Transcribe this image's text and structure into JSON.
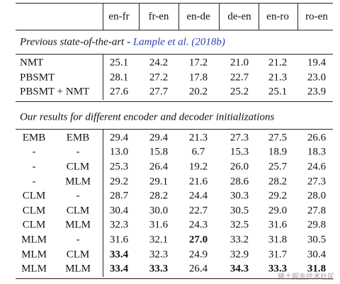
{
  "table": {
    "header": [
      "en-fr",
      "fr-en",
      "en-de",
      "de-en",
      "en-ro",
      "ro-en"
    ],
    "sections": [
      {
        "title": "Previous state-of-the-art - ",
        "citation": "Lample et al. (2018b)",
        "rows": [
          [
            "NMT",
            "25.1",
            "24.2",
            "17.2",
            "21.0",
            "21.2",
            "19.4"
          ],
          [
            "PBSMT",
            "28.1",
            "27.2",
            "17.8",
            "22.7",
            "21.3",
            "23.0"
          ],
          [
            "PBSMT + NMT",
            "27.6",
            "27.7",
            "20.2",
            "25.2",
            "25.1",
            "23.9"
          ]
        ]
      },
      {
        "title": "Our results for different encoder and decoder initializations",
        "rows": [
          [
            "EMB",
            "EMB",
            "29.4",
            "29.4",
            "21.3",
            "27.3",
            "27.5",
            "26.6"
          ],
          [
            "-",
            "-",
            "13.0",
            "15.8",
            "6.7",
            "15.3",
            "18.9",
            "18.3"
          ],
          [
            "-",
            "CLM",
            "25.3",
            "26.4",
            "19.2",
            "26.0",
            "25.7",
            "24.6"
          ],
          [
            "-",
            "MLM",
            "29.2",
            "29.1",
            "21.6",
            "28.6",
            "28.2",
            "27.3"
          ],
          [
            "CLM",
            "-",
            "28.7",
            "28.2",
            "24.4",
            "30.3",
            "29.2",
            "28.0"
          ],
          [
            "CLM",
            "CLM",
            "30.4",
            "30.0",
            "22.7",
            "30.5",
            "29.0",
            "27.8"
          ],
          [
            "CLM",
            "MLM",
            "32.3",
            "31.6",
            "24.3",
            "32.5",
            "31.6",
            "29.8"
          ],
          [
            "MLM",
            "-",
            "31.6",
            "32.1",
            {
              "value": "27.0",
              "bold": true
            },
            "33.2",
            "31.8",
            "30.5"
          ],
          [
            "MLM",
            "CLM",
            {
              "value": "33.4",
              "bold": true
            },
            "32.3",
            "24.9",
            "32.9",
            "31.7",
            "30.4"
          ],
          [
            "MLM",
            "MLM",
            {
              "value": "33.4",
              "bold": true
            },
            {
              "value": "33.3",
              "bold": true
            },
            "26.4",
            {
              "value": "34.3",
              "bold": true
            },
            {
              "value": "33.3",
              "bold": true
            },
            {
              "value": "31.8",
              "bold": true
            }
          ]
        ]
      }
    ],
    "watermark": "稀土掘金技术社区"
  }
}
